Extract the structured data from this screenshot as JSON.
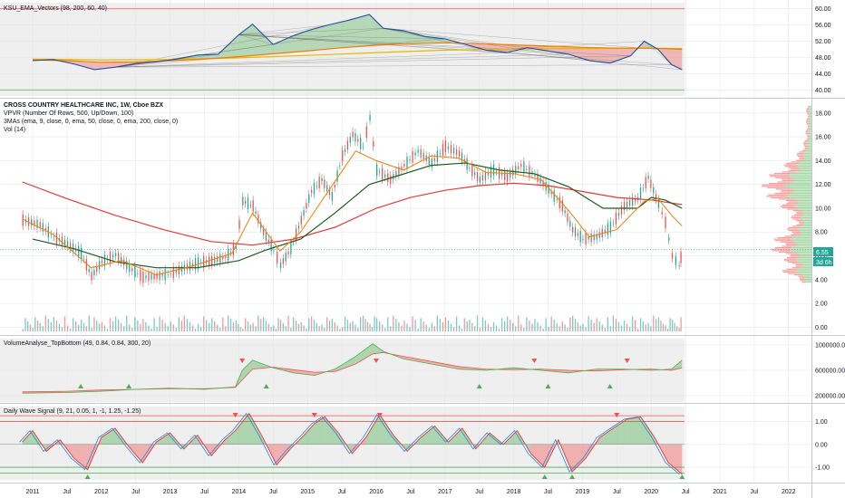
{
  "chart_data": {
    "type": "line",
    "symbol_header": "CROSS COUNTRY HEALTHCARE INC, 1W, Cboe BZX",
    "x_ticks": [
      "2011",
      "Jul",
      "2012",
      "Jul",
      "2013",
      "Jul",
      "2014",
      "Jul",
      "2015",
      "Jul",
      "2016",
      "Jul",
      "2017",
      "Jul",
      "2018",
      "Jul",
      "2019",
      "Jul",
      "2020",
      "Jul",
      "2021",
      "Jul",
      "2022"
    ],
    "panels": [
      {
        "id": "ksu",
        "title": "KSU_EMA_Vectors (98, 200, 60, 40)",
        "y_ticks": [
          "60.00",
          "56.00",
          "52.00",
          "48.00",
          "44.00",
          "40.00"
        ],
        "ylim": [
          38.5,
          61.5
        ],
        "levels": [
          60,
          40
        ],
        "series": [
          {
            "x": [
              2011.0,
              2011.3,
              2011.6,
              2011.9,
              2012.2,
              2012.5,
              2012.8,
              2013.1,
              2013.4,
              2013.7,
              2014.0,
              2014.2,
              2014.5,
              2014.8,
              2015.0,
              2015.3,
              2015.6,
              2015.9,
              2016.1,
              2016.4,
              2016.7,
              2017.0,
              2017.3,
              2017.6,
              2017.9,
              2018.2,
              2018.5,
              2018.8,
              2019.1,
              2019.4,
              2019.7,
              2019.9,
              2020.1,
              2020.3,
              2020.45
            ],
            "values": [
              47.2,
              47.5,
              46.4,
              45.0,
              45.6,
              46.5,
              46.9,
              47.6,
              48.6,
              48.8,
              53.6,
              56.2,
              51.2,
              53.4,
              54.6,
              56.0,
              57.2,
              58.6,
              55.2,
              54.6,
              53.2,
              52.6,
              51.2,
              49.8,
              49.2,
              50.4,
              49.6,
              48.8,
              47.2,
              46.6,
              48.4,
              52.0,
              50.0,
              46.2,
              45.0
            ]
          },
          {
            "x": [
              2011.0,
              2011.5,
              2012.0,
              2012.5,
              2013.0,
              2013.5,
              2014.0,
              2014.5,
              2015.0,
              2015.5,
              2016.0,
              2016.5,
              2017.0,
              2017.5,
              2018.0,
              2018.5,
              2019.0,
              2019.5,
              2020.0,
              2020.45
            ],
            "values": [
              47.4,
              47.2,
              46.8,
              46.9,
              47.2,
              47.6,
              48.2,
              48.9,
              49.6,
              50.4,
              51.0,
              51.4,
              51.6,
              51.4,
              51.1,
              50.8,
              50.5,
              50.3,
              50.3,
              50.0
            ]
          },
          {
            "x": [
              2011.0,
              2012.0,
              2013.0,
              2014.0,
              2015.0,
              2016.0,
              2017.0,
              2018.0,
              2019.0,
              2020.0,
              2020.45
            ],
            "values": [
              47.6,
              47.4,
              47.5,
              47.9,
              48.5,
              49.2,
              49.8,
              50.1,
              50.2,
              50.3,
              50.2
            ]
          }
        ]
      },
      {
        "id": "price",
        "legend_lines": [
          "VPVR (Number Of Rows, 500, Up/Down, 100)",
          "3MAs (ema, 9, close, 0, ema, 50, close, 0, ema, 200, close, 0)",
          "Vol (14)"
        ],
        "y_ticks": [
          "18.00",
          "16.00",
          "14.00",
          "12.00",
          "10.00",
          "8.00",
          "6.00",
          "4.00",
          "2.00",
          "0.00"
        ],
        "ylim": [
          -0.5,
          19.2
        ],
        "last_price": "6.55",
        "countdown": "3d 6h",
        "series": [
          {
            "name": "close",
            "x": [
              2010.85,
              2011.1,
              2011.3,
              2011.5,
              2011.7,
              2011.85,
              2012.0,
              2012.2,
              2012.4,
              2012.6,
              2012.8,
              2013.0,
              2013.2,
              2013.4,
              2013.6,
              2013.8,
              2013.95,
              2014.05,
              2014.2,
              2014.35,
              2014.5,
              2014.6,
              2014.75,
              2014.9,
              2015.05,
              2015.2,
              2015.35,
              2015.5,
              2015.65,
              2015.8,
              2015.9,
              2016.0,
              2016.2,
              2016.4,
              2016.6,
              2016.8,
              2017.0,
              2017.2,
              2017.35,
              2017.5,
              2017.7,
              2017.9,
              2018.1,
              2018.3,
              2018.5,
              2018.7,
              2018.85,
              2019.0,
              2019.2,
              2019.4,
              2019.6,
              2019.8,
              2019.95,
              2020.1,
              2020.2,
              2020.3,
              2020.4,
              2020.45
            ],
            "values": [
              9.0,
              8.6,
              7.6,
              7.0,
              6.2,
              4.3,
              5.5,
              6.1,
              5.0,
              4.2,
              4.3,
              4.5,
              5.0,
              5.4,
              5.6,
              5.9,
              6.7,
              10.6,
              10.2,
              8.0,
              6.5,
              5.2,
              6.6,
              9.0,
              11.4,
              12.4,
              11.0,
              14.4,
              16.2,
              15.2,
              17.6,
              13.2,
              12.4,
              13.6,
              14.8,
              13.8,
              15.2,
              14.6,
              13.4,
              12.4,
              13.2,
              12.6,
              13.6,
              12.8,
              11.6,
              10.2,
              8.2,
              7.4,
              7.6,
              8.4,
              10.2,
              10.8,
              12.6,
              10.4,
              8.8,
              6.0,
              5.2,
              6.55
            ]
          },
          {
            "name": "ema9",
            "x": [
              2010.85,
              2011.3,
              2011.85,
              2012.3,
              2012.8,
              2013.3,
              2013.9,
              2014.2,
              2014.6,
              2014.9,
              2015.3,
              2015.7,
              2016.0,
              2016.4,
              2016.8,
              2017.2,
              2017.6,
              2018.0,
              2018.4,
              2018.8,
              2019.1,
              2019.5,
              2019.9,
              2020.1,
              2020.3,
              2020.45
            ],
            "values": [
              9.1,
              7.8,
              5.0,
              5.6,
              4.4,
              5.1,
              6.2,
              9.6,
              6.4,
              8.0,
              11.4,
              14.8,
              14.0,
              13.2,
              14.4,
              14.2,
              13.0,
              12.9,
              12.4,
              9.8,
              7.6,
              8.2,
              10.6,
              10.8,
              9.4,
              8.5
            ]
          },
          {
            "name": "ema50",
            "x": [
              2011.0,
              2011.6,
              2012.2,
              2012.8,
              2013.4,
              2014.0,
              2014.4,
              2014.9,
              2015.4,
              2015.9,
              2016.3,
              2016.8,
              2017.3,
              2017.8,
              2018.3,
              2018.8,
              2019.3,
              2019.8,
              2020.0,
              2020.2,
              2020.45
            ],
            "values": [
              7.4,
              6.6,
              5.5,
              5.0,
              5.0,
              5.6,
              6.5,
              7.4,
              9.6,
              12.0,
              12.7,
              13.6,
              13.8,
              13.2,
              12.9,
              11.8,
              10.0,
              10.0,
              10.9,
              10.7,
              10.0
            ]
          },
          {
            "name": "ema200",
            "x": [
              2010.85,
              2011.5,
              2012.2,
              2012.9,
              2013.6,
              2014.2,
              2014.8,
              2015.4,
              2016.0,
              2016.5,
              2017.0,
              2017.5,
              2018.0,
              2018.5,
              2019.0,
              2019.5,
              2020.0,
              2020.45
            ],
            "values": [
              12.2,
              10.8,
              9.4,
              8.2,
              7.2,
              6.9,
              7.4,
              8.4,
              10.0,
              10.9,
              11.5,
              11.9,
              12.1,
              11.9,
              11.4,
              10.9,
              10.7,
              10.3
            ]
          }
        ]
      },
      {
        "id": "vol_analyse",
        "title": "VolumeAnalyse_TopBottom (49, 0.84, 0.84, 300, 20)",
        "y_ticks": [
          "1000000.00",
          "600000.00",
          "200000.00"
        ],
        "ylim": [
          100000,
          1100000
        ],
        "series": [
          {
            "x": [
              2010.85,
              2011.5,
              2012.0,
              2012.5,
              2013.0,
              2013.5,
              2013.95,
              2014.05,
              2014.2,
              2014.5,
              2014.8,
              2015.1,
              2015.4,
              2015.7,
              2015.95,
              2016.1,
              2016.4,
              2016.8,
              2017.2,
              2017.6,
              2018.0,
              2018.4,
              2018.8,
              2019.2,
              2019.6,
              2020.0,
              2020.3,
              2020.45
            ],
            "values": [
              240000,
              250000,
              270000,
              300000,
              320000,
              300000,
              340000,
              600000,
              760000,
              640000,
              560000,
              520000,
              620000,
              820000,
              1020000,
              900000,
              780000,
              700000,
              620000,
              600000,
              640000,
              600000,
              560000,
              620000,
              620000,
              600000,
              620000,
              760000
            ]
          },
          {
            "x": [
              2010.85,
              2011.5,
              2012.0,
              2012.5,
              2013.0,
              2013.5,
              2013.95,
              2014.05,
              2014.2,
              2014.5,
              2014.8,
              2015.1,
              2015.4,
              2015.7,
              2015.95,
              2016.1,
              2016.4,
              2016.8,
              2017.2,
              2017.6,
              2018.0,
              2018.4,
              2018.8,
              2019.2,
              2019.6,
              2020.0,
              2020.3,
              2020.45
            ],
            "values": [
              260000,
              270000,
              290000,
              300000,
              310000,
              310000,
              330000,
              450000,
              620000,
              650000,
              610000,
              570000,
              580000,
              700000,
              860000,
              880000,
              820000,
              740000,
              660000,
              620000,
              610000,
              620000,
              600000,
              590000,
              610000,
              620000,
              600000,
              640000
            ]
          }
        ],
        "markers_down": [
          2014.05,
          2016.0,
          2018.3,
          2019.65
        ],
        "markers_up": [
          2011.7,
          2012.4,
          2014.4,
          2017.5,
          2018.5,
          2019.4
        ]
      },
      {
        "id": "wave",
        "title": "Daily Wave Signal (9, 21, 0.05, 1, -1, 1.25, -1.25)",
        "y_ticks": [
          "1.00",
          "0.00",
          "-1.00"
        ],
        "ylim": [
          -1.55,
          1.65
        ],
        "levels": [
          1.25,
          1.0,
          -1.0,
          -1.25
        ],
        "series": [
          {
            "x": [
              2010.85,
              2011.0,
              2011.2,
              2011.4,
              2011.6,
              2011.8,
              2012.0,
              2012.2,
              2012.4,
              2012.6,
              2012.8,
              2013.0,
              2013.2,
              2013.4,
              2013.6,
              2013.8,
              2013.95,
              2014.15,
              2014.35,
              2014.55,
              2014.75,
              2014.95,
              2015.1,
              2015.25,
              2015.45,
              2015.65,
              2015.85,
              2016.05,
              2016.25,
              2016.45,
              2016.65,
              2016.85,
              2017.05,
              2017.25,
              2017.45,
              2017.65,
              2017.85,
              2018.05,
              2018.25,
              2018.45,
              2018.65,
              2018.85,
              2019.05,
              2019.25,
              2019.45,
              2019.65,
              2019.85,
              2020.05,
              2020.25,
              2020.45
            ],
            "values": [
              0.1,
              0.6,
              -0.3,
              0.2,
              -0.6,
              -1.1,
              0.3,
              0.7,
              -0.1,
              -0.8,
              0.1,
              0.5,
              -0.2,
              0.4,
              -0.5,
              0.2,
              0.6,
              1.35,
              0.3,
              -0.9,
              -0.2,
              0.4,
              0.9,
              1.2,
              0.5,
              -0.4,
              0.3,
              1.3,
              0.4,
              -0.3,
              0.3,
              0.8,
              0.1,
              0.7,
              -0.2,
              0.5,
              0.0,
              0.6,
              -0.4,
              -1.0,
              0.2,
              -1.2,
              -0.6,
              0.3,
              0.7,
              1.1,
              1.2,
              0.3,
              -0.8,
              -1.3
            ]
          }
        ],
        "markers_down": [
          2013.95,
          2015.1,
          2016.05,
          2019.5
        ],
        "markers_up": [
          2011.8,
          2018.45,
          2018.85,
          2020.45
        ]
      }
    ]
  }
}
